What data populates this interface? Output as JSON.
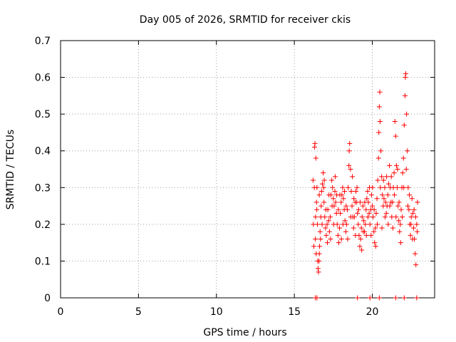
{
  "chart_data": {
    "type": "scatter",
    "title": "Day 005 of 2026, SRMTID for receiver ckis",
    "xlabel": "GPS time / hours",
    "ylabel": "SRMTID / TECUs",
    "xlim": [
      0,
      24
    ],
    "ylim": [
      0,
      0.7
    ],
    "xticks": [
      0,
      5,
      10,
      15,
      20
    ],
    "yticks": [
      0,
      0.1,
      0.2,
      0.3,
      0.4,
      0.5,
      0.6,
      0.7
    ],
    "xtick_labels": [
      "0",
      "5",
      "10",
      "15",
      "20"
    ],
    "ytick_labels": [
      "0",
      "0.1",
      "0.2",
      "0.3",
      "0.4",
      "0.5",
      "0.6",
      "0.7"
    ],
    "grid": true,
    "marker": "+",
    "series_color": "#ff0000",
    "series": [
      {
        "name": "SRMTID",
        "points": [
          [
            16.35,
            0.0
          ],
          [
            16.45,
            0.0
          ],
          [
            19.05,
            0.0
          ],
          [
            19.85,
            0.0
          ],
          [
            20.45,
            0.0
          ],
          [
            21.5,
            0.0
          ],
          [
            22.05,
            0.0
          ],
          [
            22.85,
            0.0
          ],
          [
            16.2,
            0.32
          ],
          [
            16.25,
            0.14
          ],
          [
            16.3,
            0.41
          ],
          [
            16.32,
            0.42
          ],
          [
            16.35,
            0.16
          ],
          [
            16.38,
            0.38
          ],
          [
            16.4,
            0.12
          ],
          [
            16.42,
            0.26
          ],
          [
            16.45,
            0.3
          ],
          [
            16.48,
            0.2
          ],
          [
            16.5,
            0.1
          ],
          [
            16.52,
            0.08
          ],
          [
            16.55,
            0.07
          ],
          [
            16.58,
            0.1
          ],
          [
            16.6,
            0.12
          ],
          [
            16.62,
            0.14
          ],
          [
            16.65,
            0.18
          ],
          [
            16.7,
            0.22
          ],
          [
            16.72,
            0.25
          ],
          [
            16.75,
            0.29
          ],
          [
            16.8,
            0.31
          ],
          [
            16.85,
            0.34
          ],
          [
            16.88,
            0.3
          ],
          [
            16.9,
            0.26
          ],
          [
            16.95,
            0.22
          ],
          [
            17.0,
            0.19
          ],
          [
            17.05,
            0.17
          ],
          [
            17.1,
            0.2
          ],
          [
            17.15,
            0.24
          ],
          [
            17.2,
            0.21
          ],
          [
            17.25,
            0.18
          ],
          [
            17.3,
            0.22
          ],
          [
            17.35,
            0.28
          ],
          [
            17.4,
            0.32
          ],
          [
            17.45,
            0.3
          ],
          [
            17.5,
            0.27
          ],
          [
            17.55,
            0.25
          ],
          [
            17.6,
            0.29
          ],
          [
            17.65,
            0.26
          ],
          [
            17.7,
            0.23
          ],
          [
            17.75,
            0.2
          ],
          [
            17.8,
            0.17
          ],
          [
            17.85,
            0.15
          ],
          [
            17.9,
            0.19
          ],
          [
            17.95,
            0.23
          ],
          [
            18.0,
            0.26
          ],
          [
            18.05,
            0.28
          ],
          [
            18.1,
            0.3
          ],
          [
            18.15,
            0.27
          ],
          [
            18.2,
            0.24
          ],
          [
            18.25,
            0.21
          ],
          [
            18.3,
            0.18
          ],
          [
            18.35,
            0.2
          ],
          [
            18.4,
            0.24
          ],
          [
            18.45,
            0.3
          ],
          [
            18.5,
            0.36
          ],
          [
            18.52,
            0.4
          ],
          [
            18.55,
            0.42
          ],
          [
            18.6,
            0.35
          ],
          [
            18.65,
            0.29
          ],
          [
            18.7,
            0.25
          ],
          [
            18.75,
            0.22
          ],
          [
            18.8,
            0.19
          ],
          [
            18.85,
            0.22
          ],
          [
            18.9,
            0.26
          ],
          [
            18.95,
            0.29
          ],
          [
            19.0,
            0.26
          ],
          [
            19.05,
            0.23
          ],
          [
            19.1,
            0.2
          ],
          [
            19.15,
            0.17
          ],
          [
            19.2,
            0.14
          ],
          [
            19.25,
            0.16
          ],
          [
            19.3,
            0.19
          ],
          [
            19.35,
            0.22
          ],
          [
            19.4,
            0.25
          ],
          [
            19.45,
            0.21
          ],
          [
            19.5,
            0.18
          ],
          [
            19.55,
            0.2
          ],
          [
            19.6,
            0.24
          ],
          [
            19.65,
            0.27
          ],
          [
            19.7,
            0.29
          ],
          [
            19.75,
            0.26
          ],
          [
            19.8,
            0.23
          ],
          [
            19.85,
            0.2
          ],
          [
            19.9,
            0.24
          ],
          [
            19.95,
            0.28
          ],
          [
            20.0,
            0.25
          ],
          [
            20.05,
            0.22
          ],
          [
            20.1,
            0.18
          ],
          [
            20.15,
            0.15
          ],
          [
            20.2,
            0.19
          ],
          [
            20.25,
            0.23
          ],
          [
            20.3,
            0.27
          ],
          [
            20.35,
            0.32
          ],
          [
            20.4,
            0.38
          ],
          [
            20.42,
            0.45
          ],
          [
            20.45,
            0.52
          ],
          [
            20.48,
            0.56
          ],
          [
            20.5,
            0.48
          ],
          [
            20.55,
            0.4
          ],
          [
            20.6,
            0.33
          ],
          [
            20.65,
            0.28
          ],
          [
            20.7,
            0.25
          ],
          [
            20.75,
            0.27
          ],
          [
            20.8,
            0.3
          ],
          [
            20.85,
            0.26
          ],
          [
            20.9,
            0.23
          ],
          [
            20.95,
            0.25
          ],
          [
            21.0,
            0.28
          ],
          [
            21.05,
            0.31
          ],
          [
            21.1,
            0.36
          ],
          [
            21.15,
            0.3
          ],
          [
            21.2,
            0.26
          ],
          [
            21.25,
            0.22
          ],
          [
            21.3,
            0.26
          ],
          [
            21.35,
            0.3
          ],
          [
            21.4,
            0.34
          ],
          [
            21.45,
            0.48
          ],
          [
            21.5,
            0.44
          ],
          [
            21.55,
            0.36
          ],
          [
            21.6,
            0.3
          ],
          [
            21.65,
            0.25
          ],
          [
            21.7,
            0.21
          ],
          [
            21.75,
            0.18
          ],
          [
            21.8,
            0.2
          ],
          [
            21.85,
            0.24
          ],
          [
            21.9,
            0.3
          ],
          [
            21.95,
            0.34
          ],
          [
            22.0,
            0.38
          ],
          [
            22.05,
            0.47
          ],
          [
            22.1,
            0.55
          ],
          [
            22.12,
            0.6
          ],
          [
            22.15,
            0.61
          ],
          [
            22.2,
            0.5
          ],
          [
            22.25,
            0.4
          ],
          [
            22.3,
            0.3
          ],
          [
            22.35,
            0.24
          ],
          [
            22.4,
            0.2
          ],
          [
            22.45,
            0.17
          ],
          [
            22.5,
            0.22
          ],
          [
            22.55,
            0.27
          ],
          [
            22.6,
            0.23
          ],
          [
            22.65,
            0.19
          ],
          [
            22.7,
            0.16
          ],
          [
            22.75,
            0.12
          ],
          [
            22.8,
            0.09
          ],
          [
            22.85,
            0.2
          ],
          [
            22.9,
            0.26
          ],
          [
            16.22,
            0.2
          ],
          [
            16.28,
            0.3
          ],
          [
            16.36,
            0.22
          ],
          [
            16.44,
            0.24
          ],
          [
            16.6,
            0.28
          ],
          [
            16.68,
            0.16
          ],
          [
            16.78,
            0.2
          ],
          [
            16.92,
            0.32
          ],
          [
            17.02,
            0.24
          ],
          [
            17.12,
            0.15
          ],
          [
            17.22,
            0.28
          ],
          [
            17.32,
            0.16
          ],
          [
            17.42,
            0.25
          ],
          [
            17.52,
            0.2
          ],
          [
            17.62,
            0.33
          ],
          [
            17.72,
            0.28
          ],
          [
            17.82,
            0.24
          ],
          [
            17.92,
            0.28
          ],
          [
            18.02,
            0.16
          ],
          [
            18.12,
            0.2
          ],
          [
            18.22,
            0.29
          ],
          [
            18.32,
            0.25
          ],
          [
            18.42,
            0.16
          ],
          [
            18.62,
            0.22
          ],
          [
            18.72,
            0.33
          ],
          [
            18.82,
            0.27
          ],
          [
            18.92,
            0.17
          ],
          [
            19.02,
            0.3
          ],
          [
            19.12,
            0.24
          ],
          [
            19.22,
            0.26
          ],
          [
            19.32,
            0.13
          ],
          [
            19.42,
            0.18
          ],
          [
            19.52,
            0.26
          ],
          [
            19.62,
            0.17
          ],
          [
            19.72,
            0.22
          ],
          [
            19.82,
            0.3
          ],
          [
            19.92,
            0.17
          ],
          [
            20.02,
            0.3
          ],
          [
            20.12,
            0.24
          ],
          [
            20.22,
            0.14
          ],
          [
            20.32,
            0.2
          ],
          [
            20.52,
            0.3
          ],
          [
            20.62,
            0.19
          ],
          [
            20.72,
            0.32
          ],
          [
            20.82,
            0.22
          ],
          [
            20.92,
            0.33
          ],
          [
            21.02,
            0.2
          ],
          [
            21.12,
            0.25
          ],
          [
            21.22,
            0.33
          ],
          [
            21.32,
            0.19
          ],
          [
            21.42,
            0.28
          ],
          [
            21.52,
            0.22
          ],
          [
            21.62,
            0.35
          ],
          [
            21.72,
            0.26
          ],
          [
            21.82,
            0.15
          ],
          [
            21.92,
            0.22
          ],
          [
            22.02,
            0.3
          ],
          [
            22.18,
            0.35
          ],
          [
            22.28,
            0.25
          ],
          [
            22.38,
            0.28
          ],
          [
            22.48,
            0.2
          ],
          [
            22.58,
            0.16
          ],
          [
            22.68,
            0.24
          ],
          [
            22.78,
            0.22
          ],
          [
            22.88,
            0.18
          ]
        ]
      }
    ]
  }
}
